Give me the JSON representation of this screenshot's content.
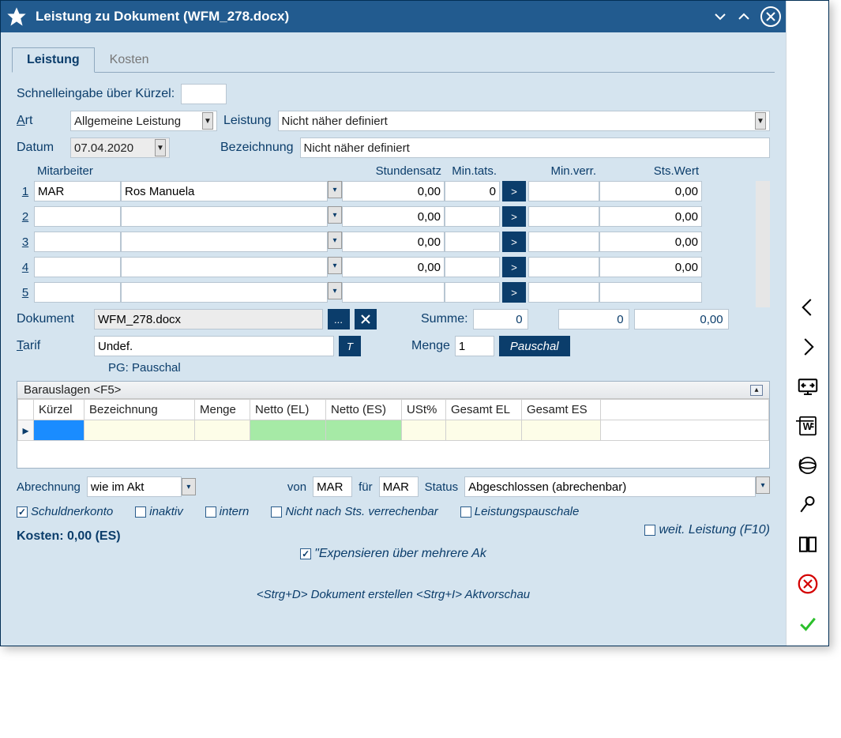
{
  "window": {
    "title": "Leistung zu Dokument (WFM_278.docx)"
  },
  "tabs": {
    "t0": "Leistung",
    "t1": "Kosten"
  },
  "labels": {
    "schnelleingabe": "Schnelleingabe über Kürzel:",
    "art": "Art",
    "leistung": "Leistung",
    "datum": "Datum",
    "bezeichnung": "Bezeichnung",
    "mitarbeiter": "Mitarbeiter",
    "stundensatz": "Stundensatz",
    "min_tats": "Min.tats.",
    "min_verr": "Min.verr.",
    "sts_wert": "Sts.Wert",
    "dokument": "Dokument",
    "summe": "Summe:",
    "tarif": "Tarif",
    "menge": "Menge",
    "pg": "PG: Pauschal",
    "barauslagen": "Barauslagen <F5>",
    "abrechnung": "Abrechnung",
    "von": "von",
    "fuer": "für",
    "status": "Status"
  },
  "values": {
    "art": "Allgemeine Leistung",
    "leistung": "Nicht näher definiert",
    "datum": "07.04.2020",
    "bezeichnung": "Nicht näher definiert",
    "dokument": "WFM_278.docx",
    "tarif": "Undef.",
    "menge": "1",
    "abrechnung": "wie im Akt",
    "von": "MAR",
    "fuer": "MAR",
    "status": "Abgeschlossen (abrechenbar)"
  },
  "summe": {
    "col1": "0",
    "col2": "0",
    "col3": "0,00"
  },
  "emp": {
    "rows": [
      {
        "idx": "1",
        "code": "MAR",
        "name": "Ros Manuela",
        "stund": "0,00",
        "mint": "0",
        "minv": "",
        "sts": "0,00"
      },
      {
        "idx": "2",
        "code": "",
        "name": "",
        "stund": "0,00",
        "mint": "",
        "minv": "",
        "sts": "0,00"
      },
      {
        "idx": "3",
        "code": "",
        "name": "",
        "stund": "0,00",
        "mint": "",
        "minv": "",
        "sts": "0,00"
      },
      {
        "idx": "4",
        "code": "",
        "name": "",
        "stund": "0,00",
        "mint": "",
        "minv": "",
        "sts": "0,00"
      },
      {
        "idx": "5",
        "code": "",
        "name": "",
        "stund": "",
        "mint": "",
        "minv": "",
        "sts": ""
      }
    ]
  },
  "buttons": {
    "pauschal": "Pauschal",
    "t": "T",
    "dots": "...",
    "gt": ">"
  },
  "baraus_cols": {
    "kuerzel": "Kürzel",
    "bez": "Bezeichnung",
    "menge": "Menge",
    "netto_el": "Netto (EL)",
    "netto_es": "Netto (ES)",
    "ust": "USt%",
    "ges_el": "Gesamt EL",
    "ges_es": "Gesamt ES"
  },
  "checks": {
    "schuldner": "Schuldnerkonto",
    "inaktiv": "inaktiv",
    "intern": "intern",
    "nicht_sts": "Nicht nach Sts. verrechenbar",
    "leist_pausch": "Leistungspauschale",
    "expens": "\"Expensieren über mehrere Ak",
    "weit": "weit. Leistung (F10)"
  },
  "kosten_line": "Kosten: 0,00 (ES)",
  "footer": "<Strg+D> Dokument erstellen <Strg+I> Aktvorschau"
}
